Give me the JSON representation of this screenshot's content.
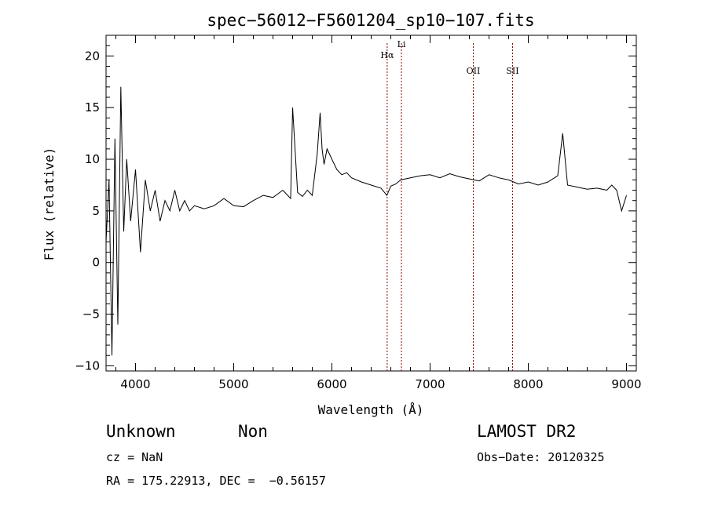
{
  "chart_data": {
    "type": "line",
    "title": "spec−56012−F5601204_sp10−107.fits",
    "xlabel": "Wavelength (Å)",
    "ylabel": "Flux (relative)",
    "xlim": [
      3700,
      9100
    ],
    "ylim": [
      -10.5,
      22
    ],
    "xticks": [
      4000,
      5000,
      6000,
      7000,
      8000,
      9000
    ],
    "yticks": [
      -10,
      -5,
      0,
      5,
      10,
      15,
      20
    ],
    "xtick_labels": [
      "4000",
      "5000",
      "6000",
      "7000",
      "8000",
      "9000"
    ],
    "ytick_labels": [
      "−10",
      "−5",
      "0",
      "5",
      "10",
      "15",
      "20"
    ],
    "grid": false,
    "series": [
      {
        "x": [
          3700,
          3730,
          3760,
          3790,
          3820,
          3850,
          3880,
          3910,
          3950,
          4000,
          4050,
          4100,
          4150,
          4200,
          4250,
          4300,
          4350,
          4400,
          4450,
          4500,
          4550,
          4600,
          4700,
          4800,
          4900,
          5000,
          5100,
          5200,
          5300,
          5400,
          5500,
          5580,
          5600,
          5650,
          5700,
          5750,
          5800,
          5850,
          5880,
          5900,
          5920,
          5950,
          6000,
          6050,
          6100,
          6150,
          6200,
          6300,
          6400,
          6500,
          6560,
          6600,
          6650,
          6700,
          6800,
          6900,
          7000,
          7100,
          7200,
          7300,
          7400,
          7500,
          7600,
          7700,
          7800,
          7900,
          8000,
          8100,
          8200,
          8300,
          8350,
          8400,
          8500,
          8600,
          8700,
          8800,
          8850,
          8900,
          8950,
          9000
        ],
        "y": [
          2,
          8,
          -9,
          12,
          -6,
          17,
          3,
          10,
          4,
          9,
          1,
          8,
          5,
          7,
          4,
          6,
          5,
          7,
          5,
          6,
          5,
          5.5,
          5.2,
          5.5,
          6.2,
          5.5,
          5.4,
          6,
          6.5,
          6.3,
          7,
          6.2,
          15,
          6.8,
          6.4,
          7,
          6.5,
          10.5,
          14.5,
          11,
          9.5,
          11,
          10,
          9,
          8.5,
          8.7,
          8.2,
          7.8,
          7.5,
          7.2,
          6.5,
          7.4,
          7.6,
          8,
          8.2,
          8.4,
          8.5,
          8.2,
          8.6,
          8.3,
          8.1,
          7.9,
          8.5,
          8.2,
          8,
          7.6,
          7.8,
          7.5,
          7.8,
          8.4,
          12.5,
          7.5,
          7.3,
          7.1,
          7.2,
          7,
          7.5,
          7,
          5,
          6.5
        ]
      }
    ],
    "lines": [
      {
        "label": "Hα",
        "x": 6563
      },
      {
        "label": "Li",
        "x": 6708
      },
      {
        "label": "OII",
        "x": 7440
      },
      {
        "label": "SII",
        "x": 7840
      }
    ]
  },
  "info": {
    "class": "Unknown",
    "subclass": "Non",
    "survey": "LAMOST DR2",
    "cz": "cz = NaN",
    "obs_date": "Obs−Date: 20120325",
    "radec": "RA = 175.22913, DEC =  −0.56157"
  }
}
